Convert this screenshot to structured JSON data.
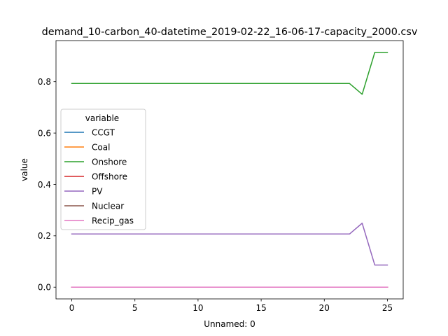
{
  "chart_data": {
    "type": "line",
    "title": "demand_10-carbon_40-datetime_2019-02-22_16-06-17-capacity_2000.csv",
    "xlabel": "Unnamed: 0",
    "ylabel": "value",
    "xlim": [
      -1.25,
      26.25
    ],
    "ylim": [
      -0.0457,
      0.96
    ],
    "xticks": [
      0,
      5,
      10,
      15,
      20,
      25
    ],
    "yticks": [
      0.0,
      0.2,
      0.4,
      0.6,
      0.8
    ],
    "xtick_labels": [
      "0",
      "5",
      "10",
      "15",
      "20",
      "25"
    ],
    "ytick_labels": [
      "0.0",
      "0.2",
      "0.4",
      "0.6",
      "0.8"
    ],
    "grid": false,
    "legend": {
      "title": "variable",
      "placement": "center-left"
    },
    "x": [
      0,
      1,
      2,
      3,
      4,
      5,
      6,
      7,
      8,
      9,
      10,
      11,
      12,
      13,
      14,
      15,
      16,
      17,
      18,
      19,
      20,
      21,
      22,
      23,
      24,
      25
    ],
    "series": [
      {
        "name": "CCGT",
        "color": "#1f77b4",
        "values": [
          0,
          0,
          0,
          0,
          0,
          0,
          0,
          0,
          0,
          0,
          0,
          0,
          0,
          0,
          0,
          0,
          0,
          0,
          0,
          0,
          0,
          0,
          0,
          0,
          0,
          0
        ]
      },
      {
        "name": "Coal",
        "color": "#ff7f0e",
        "values": [
          0,
          0,
          0,
          0,
          0,
          0,
          0,
          0,
          0,
          0,
          0,
          0,
          0,
          0,
          0,
          0,
          0,
          0,
          0,
          0,
          0,
          0,
          0,
          0,
          0,
          0
        ]
      },
      {
        "name": "Onshore",
        "color": "#2ca02c",
        "values": [
          0.793,
          0.793,
          0.793,
          0.793,
          0.793,
          0.793,
          0.793,
          0.793,
          0.793,
          0.793,
          0.793,
          0.793,
          0.793,
          0.793,
          0.793,
          0.793,
          0.793,
          0.793,
          0.793,
          0.793,
          0.793,
          0.793,
          0.793,
          0.751,
          0.914,
          0.914
        ]
      },
      {
        "name": "Offshore",
        "color": "#d62728",
        "values": [
          0,
          0,
          0,
          0,
          0,
          0,
          0,
          0,
          0,
          0,
          0,
          0,
          0,
          0,
          0,
          0,
          0,
          0,
          0,
          0,
          0,
          0,
          0,
          0,
          0,
          0
        ]
      },
      {
        "name": "PV",
        "color": "#9467bd",
        "values": [
          0.207,
          0.207,
          0.207,
          0.207,
          0.207,
          0.207,
          0.207,
          0.207,
          0.207,
          0.207,
          0.207,
          0.207,
          0.207,
          0.207,
          0.207,
          0.207,
          0.207,
          0.207,
          0.207,
          0.207,
          0.207,
          0.207,
          0.207,
          0.249,
          0.086,
          0.086
        ]
      },
      {
        "name": "Nuclear",
        "color": "#8c564b",
        "values": [
          0,
          0,
          0,
          0,
          0,
          0,
          0,
          0,
          0,
          0,
          0,
          0,
          0,
          0,
          0,
          0,
          0,
          0,
          0,
          0,
          0,
          0,
          0,
          0,
          0,
          0
        ]
      },
      {
        "name": "Recip_gas",
        "color": "#e377c2",
        "values": [
          0,
          0,
          0,
          0,
          0,
          0,
          0,
          0,
          0,
          0,
          0,
          0,
          0,
          0,
          0,
          0,
          0,
          0,
          0,
          0,
          0,
          0,
          0,
          0,
          0,
          0
        ]
      }
    ]
  }
}
